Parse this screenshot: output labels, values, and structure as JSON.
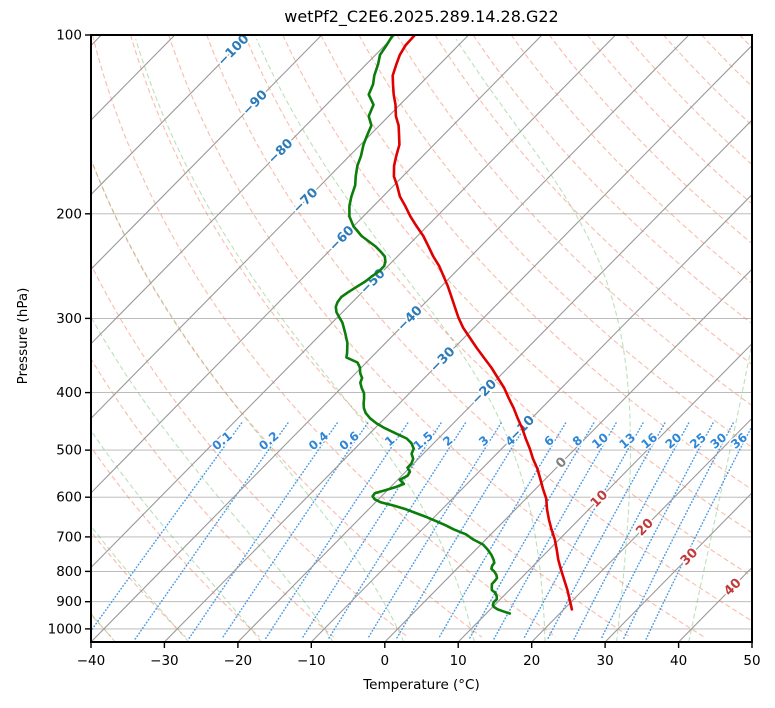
{
  "title": "wetPf2_C2E6.2025.289.14.28.G22",
  "axes": {
    "x_label": "Temperature (°C)",
    "y_label": "Pressure (hPa)",
    "x_ticks": [
      -40,
      -30,
      -20,
      -10,
      0,
      10,
      20,
      30,
      40,
      50
    ],
    "y_ticks": [
      100,
      200,
      300,
      400,
      500,
      600,
      700,
      800,
      900,
      1000
    ],
    "x_range": [
      -40,
      50
    ],
    "p_range": [
      100,
      1052
    ],
    "grid_color": "#b3b3b3"
  },
  "chart_data": {
    "type": "line",
    "subtype": "skew-t-log-p",
    "title": "wetPf2_C2E6.2025.289.14.28.G22",
    "xlabel": "Temperature (°C)",
    "ylabel": "Pressure (hPa)",
    "xlim": [
      -40,
      50
    ],
    "ylim_hPa": [
      1052,
      100
    ],
    "series": [
      {
        "name": "temperature",
        "color": "#e00000",
        "units": [
          "hPa",
          "degC"
        ],
        "points": [
          [
            100,
            -77.3
          ],
          [
            104,
            -77.2
          ],
          [
            108,
            -76.7
          ],
          [
            112,
            -75.9
          ],
          [
            117,
            -74.9
          ],
          [
            121,
            -73.7
          ],
          [
            126,
            -72.2
          ],
          [
            131,
            -70.6
          ],
          [
            137,
            -69.0
          ],
          [
            142,
            -67.4
          ],
          [
            148,
            -65.9
          ],
          [
            153,
            -64.7
          ],
          [
            160,
            -63.6
          ],
          [
            166,
            -62.6
          ],
          [
            173,
            -61.2
          ],
          [
            179,
            -59.6
          ],
          [
            187,
            -57.7
          ],
          [
            194,
            -55.7
          ],
          [
            202,
            -53.6
          ],
          [
            210,
            -51.4
          ],
          [
            218,
            -49.2
          ],
          [
            227,
            -47.1
          ],
          [
            236,
            -45.1
          ],
          [
            245,
            -43.0
          ],
          [
            255,
            -41.0
          ],
          [
            265,
            -39.1
          ],
          [
            276,
            -37.2
          ],
          [
            287,
            -35.4
          ],
          [
            299,
            -33.5
          ],
          [
            311,
            -31.5
          ],
          [
            323,
            -29.3
          ],
          [
            336,
            -27.0
          ],
          [
            349,
            -24.7
          ],
          [
            363,
            -22.3
          ],
          [
            378,
            -20.0
          ],
          [
            393,
            -17.8
          ],
          [
            409,
            -15.8
          ],
          [
            425,
            -13.8
          ],
          [
            442,
            -11.9
          ],
          [
            459,
            -10.0
          ],
          [
            478,
            -8.1
          ],
          [
            497,
            -6.2
          ],
          [
            517,
            -4.4
          ],
          [
            537,
            -2.5
          ],
          [
            559,
            -0.7
          ],
          [
            581,
            1.0
          ],
          [
            604,
            2.8
          ],
          [
            629,
            4.3
          ],
          [
            654,
            5.9
          ],
          [
            680,
            7.6
          ],
          [
            707,
            9.4
          ],
          [
            735,
            11.0
          ],
          [
            765,
            12.6
          ],
          [
            795,
            14.3
          ],
          [
            827,
            16.1
          ],
          [
            860,
            17.9
          ],
          [
            895,
            19.6
          ],
          [
            927,
            21.1
          ]
        ]
      },
      {
        "name": "dewpoint",
        "color": "#0a7d0a",
        "units": [
          "hPa",
          "degC"
        ],
        "points": [
          [
            100,
            -80.3
          ],
          [
            104,
            -79.8
          ],
          [
            108,
            -79.4
          ],
          [
            112,
            -78.4
          ],
          [
            117,
            -77.4
          ],
          [
            121,
            -76.4
          ],
          [
            126,
            -75.6
          ],
          [
            131,
            -73.6
          ],
          [
            137,
            -72.7
          ],
          [
            142,
            -71.1
          ],
          [
            148,
            -70.3
          ],
          [
            153,
            -69.6
          ],
          [
            160,
            -68.4
          ],
          [
            166,
            -67.6
          ],
          [
            173,
            -66.4
          ],
          [
            179,
            -65.3
          ],
          [
            187,
            -64.3
          ],
          [
            194,
            -63.3
          ],
          [
            202,
            -61.9
          ],
          [
            210,
            -60.0
          ],
          [
            218,
            -57.6
          ],
          [
            227,
            -54.3
          ],
          [
            232,
            -52.8
          ],
          [
            236,
            -51.7
          ],
          [
            241,
            -50.9
          ],
          [
            245,
            -50.5
          ],
          [
            250,
            -50.5
          ],
          [
            255,
            -50.8
          ],
          [
            260,
            -51.0
          ],
          [
            266,
            -51.5
          ],
          [
            271,
            -51.9
          ],
          [
            276,
            -52.2
          ],
          [
            282,
            -52.0
          ],
          [
            287,
            -51.6
          ],
          [
            293,
            -50.8
          ],
          [
            299,
            -49.7
          ],
          [
            305,
            -48.6
          ],
          [
            317,
            -46.9
          ],
          [
            330,
            -45.2
          ],
          [
            343,
            -43.9
          ],
          [
            349,
            -43.4
          ],
          [
            356,
            -41.2
          ],
          [
            363,
            -40.2
          ],
          [
            371,
            -39.4
          ],
          [
            378,
            -38.5
          ],
          [
            385,
            -38.1
          ],
          [
            393,
            -37.2
          ],
          [
            401,
            -36.2
          ],
          [
            409,
            -35.5
          ],
          [
            417,
            -34.9
          ],
          [
            425,
            -34.2
          ],
          [
            433,
            -33.3
          ],
          [
            442,
            -32.0
          ],
          [
            451,
            -30.4
          ],
          [
            459,
            -28.7
          ],
          [
            469,
            -26.4
          ],
          [
            478,
            -24.3
          ],
          [
            487,
            -23.0
          ],
          [
            497,
            -22.0
          ],
          [
            507,
            -21.6
          ],
          [
            517,
            -20.7
          ],
          [
            527,
            -20.3
          ],
          [
            535,
            -20.3
          ],
          [
            544,
            -19.4
          ],
          [
            552,
            -19.2
          ],
          [
            561,
            -19.7
          ],
          [
            570,
            -18.6
          ],
          [
            577,
            -19.3
          ],
          [
            584,
            -20.3
          ],
          [
            591,
            -21.3
          ],
          [
            598,
            -21.2
          ],
          [
            605,
            -20.5
          ],
          [
            612,
            -19.3
          ],
          [
            619,
            -17.3
          ],
          [
            629,
            -14.9
          ],
          [
            639,
            -12.9
          ],
          [
            649,
            -10.9
          ],
          [
            659,
            -9.1
          ],
          [
            669,
            -7.4
          ],
          [
            680,
            -5.7
          ],
          [
            693,
            -3.4
          ],
          [
            707,
            -1.7
          ],
          [
            721,
            0.3
          ],
          [
            735,
            1.6
          ],
          [
            750,
            2.8
          ],
          [
            765,
            3.8
          ],
          [
            774,
            4.3
          ],
          [
            783,
            4.4
          ],
          [
            792,
            4.7
          ],
          [
            801,
            5.5
          ],
          [
            811,
            6.2
          ],
          [
            821,
            6.7
          ],
          [
            830,
            6.8
          ],
          [
            840,
            6.8
          ],
          [
            850,
            7.2
          ],
          [
            860,
            7.6
          ],
          [
            870,
            8.5
          ],
          [
            881,
            9.1
          ],
          [
            891,
            9.5
          ],
          [
            902,
            9.5
          ],
          [
            913,
            9.8
          ],
          [
            920,
            10.3
          ],
          [
            927,
            11.0
          ],
          [
            934,
            12.0
          ],
          [
            942,
            13.2
          ]
        ]
      }
    ],
    "background_lines": {
      "isotherms": {
        "color": "#999999",
        "start": -120,
        "end": 50,
        "step": 10,
        "labels": [
          {
            "t": -100,
            "p": 106
          },
          {
            "t": -90,
            "p": 130
          },
          {
            "t": -80,
            "p": 157
          },
          {
            "t": -70,
            "p": 190
          },
          {
            "t": -60,
            "p": 220
          },
          {
            "t": -50,
            "p": 260
          },
          {
            "t": -40,
            "p": 300
          },
          {
            "t": -30,
            "p": 352
          },
          {
            "t": -20,
            "p": 399
          },
          {
            "t": -10,
            "p": 459
          },
          {
            "t": 0,
            "p": 525
          },
          {
            "t": 10,
            "p": 604
          },
          {
            "t": 20,
            "p": 674
          },
          {
            "t": 30,
            "p": 756
          },
          {
            "t": 40,
            "p": 850
          }
        ],
        "label_colors": {
          "negative": "#2d7bb8",
          "zero": "#808080",
          "positive": "#c23b3b"
        }
      },
      "dry_adiabats": {
        "color": "#f4795a",
        "opacity": 0.5,
        "start": -40,
        "end": 200,
        "step": 10
      },
      "moist_adiabats": {
        "color": "#5bb75b",
        "opacity": 0.42,
        "start": -40,
        "end": 60,
        "step": 10
      },
      "mixing_ratio": {
        "color": "#2e8be0",
        "opacity": 0.85,
        "label_color": "#2d86d6",
        "values": [
          0.1,
          0.2,
          0.4,
          0.6,
          1,
          1.5,
          2,
          3,
          4,
          6,
          8,
          10,
          13,
          16,
          20,
          25,
          30,
          36
        ],
        "label_pressure": 492,
        "top_pressure": 450
      }
    },
    "legend": "none",
    "grid": "on"
  }
}
